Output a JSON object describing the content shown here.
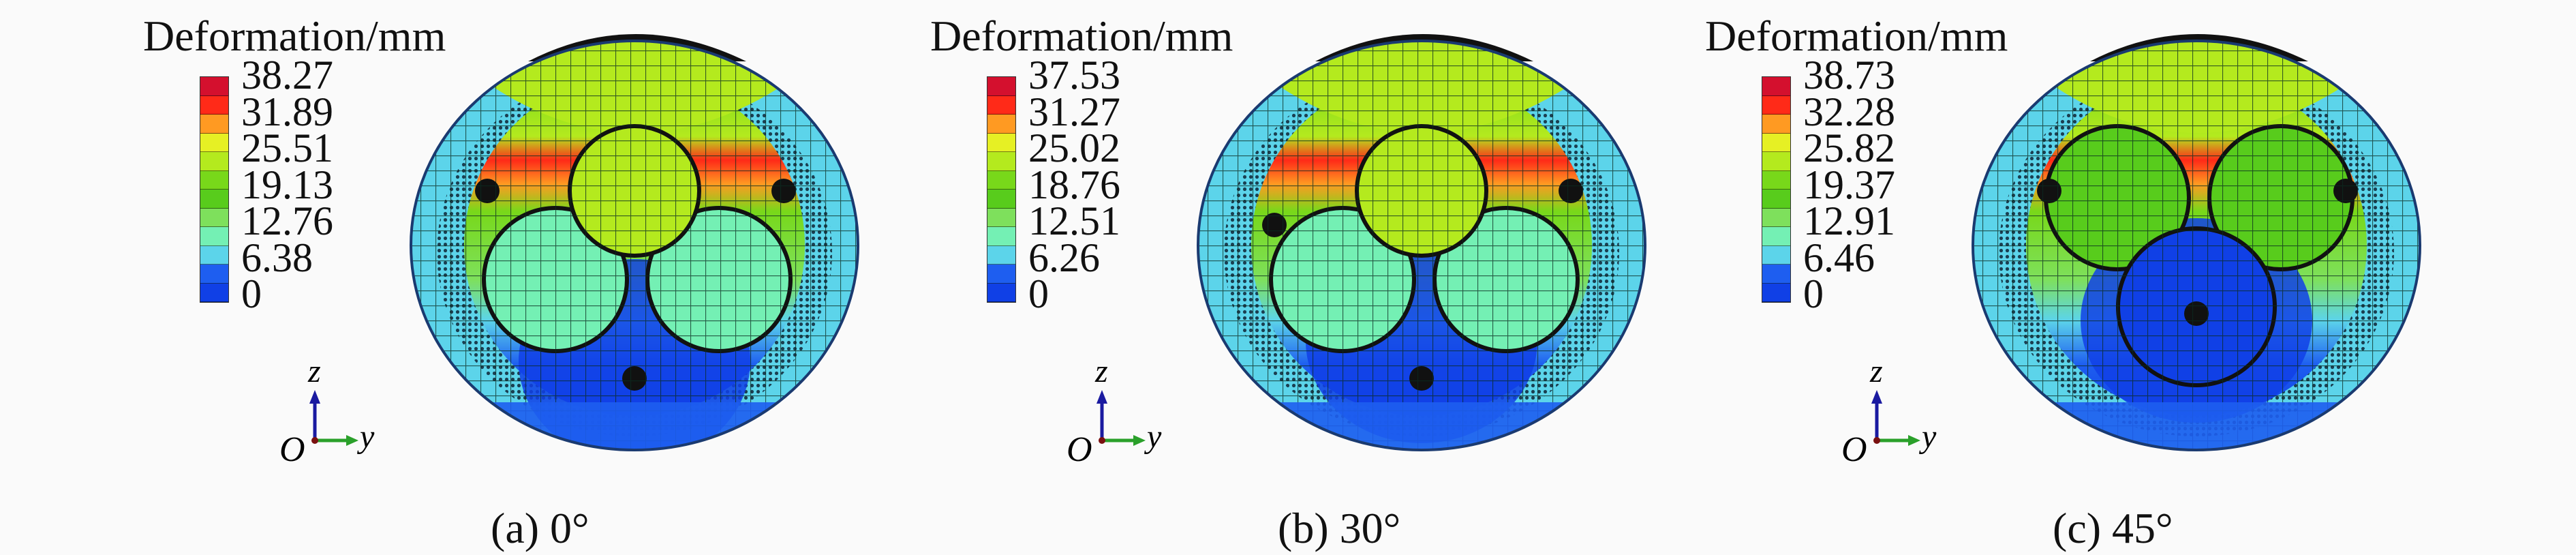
{
  "legend_title": "Deformation/mm",
  "colormap": [
    "#d4102e",
    "#ff2a18",
    "#ff9a22",
    "#e6f024",
    "#b4ea1e",
    "#78d81a",
    "#58cc1c",
    "#7ee05c",
    "#74f0b4",
    "#5cd4ea",
    "#1e5ef0",
    "#1040e6"
  ],
  "axes": {
    "origin": "O",
    "vertical": "z",
    "horizontal": "y"
  },
  "panels": [
    {
      "caption": "(a) 0°",
      "ticks": [
        "38.27",
        "31.89",
        "25.51",
        "19.13",
        "12.76",
        "6.38",
        "0"
      ]
    },
    {
      "caption": "(b) 30°",
      "ticks": [
        "37.53",
        "31.27",
        "25.02",
        "18.76",
        "12.51",
        "6.26",
        "0"
      ]
    },
    {
      "caption": "(c) 45°",
      "ticks": [
        "38.73",
        "32.28",
        "25.82",
        "19.37",
        "12.91",
        "6.46",
        "0"
      ]
    }
  ]
}
